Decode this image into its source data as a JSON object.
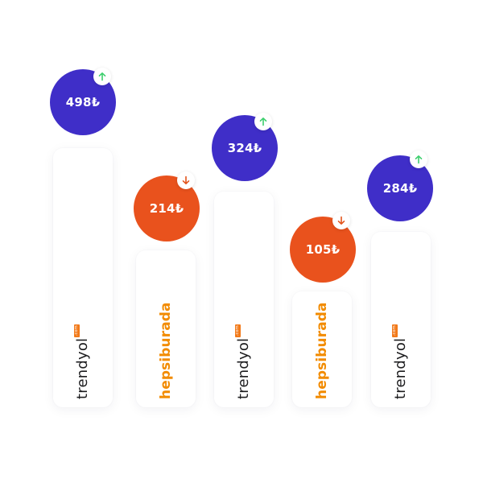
{
  "colors": {
    "up_bubble": "#3f2ec8",
    "down_bubble": "#e9521d",
    "up_arrow": "#3ecf6e",
    "down_arrow": "#e2541c",
    "trendyol_text": "#1d1d1f",
    "trendyol_tag": "#f27a1a",
    "hepsiburada_text": "#f28b00"
  },
  "items": [
    {
      "store": "trendyol",
      "logo_text": "trendyol",
      "logo_tag": ".com",
      "price": "498₺",
      "trend": "up",
      "trend_icon": "arrow-up-icon"
    },
    {
      "store": "hepsiburada",
      "logo_text": "hepsiburada",
      "price": "214₺",
      "trend": "down",
      "trend_icon": "arrow-down-icon"
    },
    {
      "store": "trendyol",
      "logo_text": "trendyol",
      "logo_tag": ".com",
      "price": "324₺",
      "trend": "up",
      "trend_icon": "arrow-up-icon"
    },
    {
      "store": "hepsiburada",
      "logo_text": "hepsiburada",
      "price": "105₺",
      "trend": "down",
      "trend_icon": "arrow-down-icon"
    },
    {
      "store": "trendyol",
      "logo_text": "trendyol",
      "logo_tag": ".com",
      "price": "284₺",
      "trend": "up",
      "trend_icon": "arrow-up-icon"
    }
  ]
}
